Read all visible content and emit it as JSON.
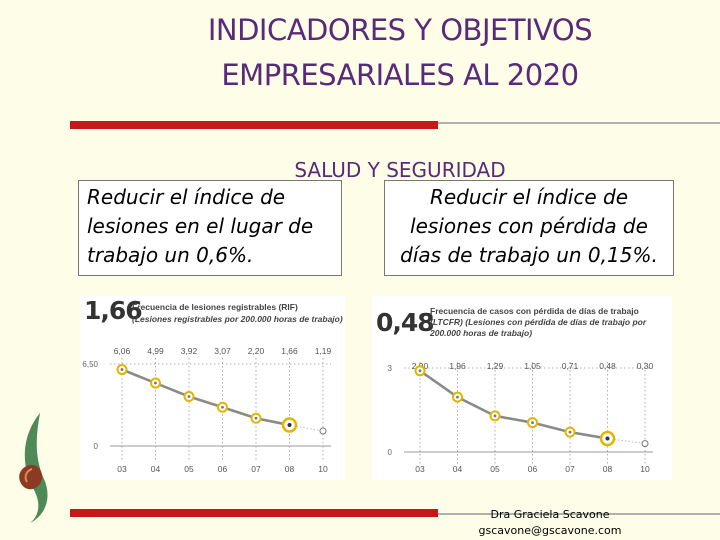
{
  "header": {
    "title_line1": "INDICADORES Y OBJETIVOS",
    "title_line2": "EMPRESARIALES AL 2020",
    "section": "SALUD Y SEGURIDAD"
  },
  "goals": {
    "left": "Reducir el índice de lesiones en el lugar de trabajo un 0,6%.",
    "right": "Reducir el índice de lesiones con pérdida de días de trabajo un 0,15%."
  },
  "footer": {
    "name": "Dra Graciela Scavone",
    "email": "gscavone@gscavone.com"
  },
  "colors": {
    "title": "#5a2a7a",
    "red_rule": "#c61818",
    "line": "#8a8a8a",
    "marker": "#e6b400"
  },
  "chart_data": [
    {
      "type": "line",
      "headline_value": "1,66",
      "title": "Frecuencia de lesiones registrables (RIF)",
      "subtitle": "(Lesiones registrables por 200.000 horas de trabajo)",
      "categories": [
        "03",
        "04",
        "05",
        "06",
        "07",
        "08",
        "10"
      ],
      "value_labels": [
        "6,06",
        "4,99",
        "3,92",
        "3,07",
        "2,20",
        "1,66",
        "1,19"
      ],
      "values": [
        6.06,
        4.99,
        3.92,
        3.07,
        2.2,
        1.66,
        1.19
      ],
      "y_ticks": [
        "6,50",
        "0"
      ],
      "ylim": [
        0,
        6.5
      ],
      "goal_index": 6
    },
    {
      "type": "line",
      "headline_value": "0,48",
      "title": "Frecuencia de casos con pérdida de días de trabajo",
      "subtitle_bold": "(LTCFR)",
      "subtitle": "(Lesiones con pérdida de días de trabajo por 200.000 horas de trabajo)",
      "categories": [
        "03",
        "04",
        "05",
        "06",
        "07",
        "08",
        "10"
      ],
      "value_labels": [
        "2,90",
        "1,96",
        "1,29",
        "1,05",
        "0,71",
        "0,48",
        "0,30"
      ],
      "values": [
        2.9,
        1.96,
        1.29,
        1.05,
        0.71,
        0.48,
        0.3
      ],
      "y_ticks": [
        "3",
        "0"
      ],
      "ylim": [
        0,
        3
      ],
      "goal_index": 6
    }
  ]
}
